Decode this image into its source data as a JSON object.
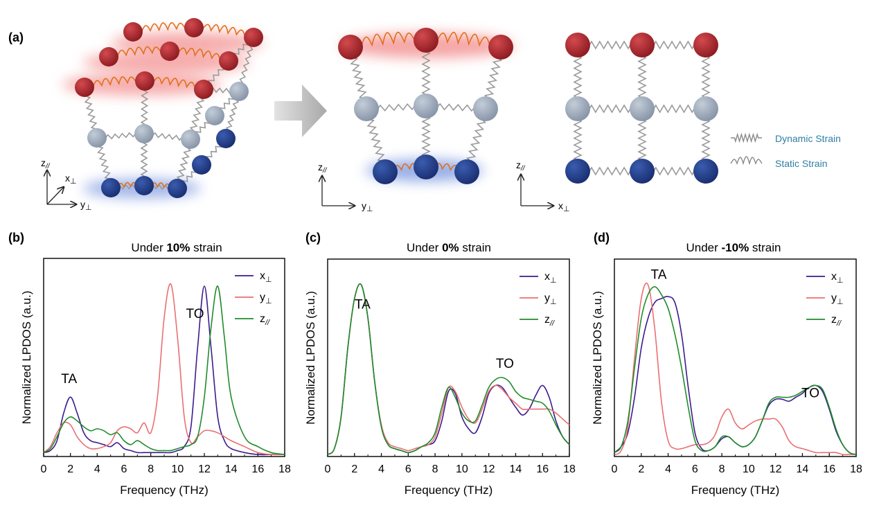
{
  "panel_a": {
    "label": "(a)",
    "axes_left": {
      "z": "z",
      "z_sub": "//",
      "x": "x",
      "x_sub": "⊥",
      "y": "y",
      "y_sub": "⊥"
    },
    "axes_middle": {
      "z": "z",
      "z_sub": "//",
      "y": "y",
      "y_sub": "⊥"
    },
    "axes_right": {
      "z": "z",
      "z_sub": "//",
      "x": "x",
      "x_sub": "⊥"
    },
    "legend": {
      "dynamic": "Dynamic Strain",
      "static": "Static Strain",
      "color": "#2e7fa3"
    },
    "colors": {
      "red": "#b3262b",
      "grey": "#a4b1c2",
      "blue": "#23408e",
      "spring": "#9a9a9a",
      "wave": "#e0701a"
    }
  },
  "chart_data": [
    {
      "panel": "(b)",
      "type": "line",
      "title_pre": "Under ",
      "title_bold": "10%",
      "title_post": " strain",
      "xlabel": "Frequency (THz)",
      "ylabel": "Normalized LPDOS (a.u.)",
      "xlim": [
        0,
        18
      ],
      "xticks": [
        0,
        2,
        4,
        6,
        8,
        10,
        12,
        14,
        16,
        18
      ],
      "ylim": [
        0,
        1
      ],
      "annotations": [
        {
          "text": "TA",
          "x": 1.9,
          "y": 0.37
        },
        {
          "text": "TO",
          "x": 11.3,
          "y": 0.7
        }
      ],
      "legend": [
        {
          "base": "x",
          "sub": "⊥"
        },
        {
          "base": "y",
          "sub": "⊥"
        },
        {
          "base": "z",
          "sub": "//"
        }
      ],
      "series": [
        {
          "name": "x⊥",
          "color": "#3c1a8c",
          "x": [
            0,
            0.5,
            1,
            1.5,
            2,
            2.5,
            3,
            3.5,
            4,
            4.5,
            5,
            5.5,
            6,
            6.5,
            7,
            7.5,
            8,
            8.5,
            9,
            9.5,
            10,
            10.5,
            11,
            11.5,
            12,
            12.5,
            13,
            13.5,
            14,
            15,
            16,
            17,
            18
          ],
          "y": [
            0.02,
            0.03,
            0.08,
            0.22,
            0.3,
            0.22,
            0.12,
            0.08,
            0.07,
            0.06,
            0.05,
            0.07,
            0.04,
            0.03,
            0.02,
            0.02,
            0.02,
            0.02,
            0.02,
            0.02,
            0.03,
            0.05,
            0.15,
            0.55,
            0.86,
            0.55,
            0.2,
            0.08,
            0.04,
            0.02,
            0.01,
            0.01,
            0.01
          ]
        },
        {
          "name": "y⊥",
          "color": "#e96f72",
          "x": [
            0,
            0.5,
            1,
            1.5,
            2,
            2.5,
            3,
            3.5,
            4,
            4.5,
            5,
            5.5,
            6,
            6.5,
            7,
            7.5,
            8,
            8.5,
            9,
            9.5,
            10,
            10.5,
            11,
            11.5,
            12,
            12.5,
            13,
            13.5,
            14,
            15,
            16,
            17,
            18
          ],
          "y": [
            0.02,
            0.05,
            0.12,
            0.17,
            0.16,
            0.1,
            0.06,
            0.04,
            0.04,
            0.05,
            0.07,
            0.13,
            0.15,
            0.14,
            0.12,
            0.17,
            0.12,
            0.3,
            0.7,
            0.87,
            0.6,
            0.2,
            0.07,
            0.1,
            0.13,
            0.13,
            0.12,
            0.1,
            0.08,
            0.05,
            0.02,
            0.01,
            0.01
          ]
        },
        {
          "name": "z//",
          "color": "#1f8c2a",
          "x": [
            0,
            0.5,
            1,
            1.5,
            2,
            2.5,
            3,
            3.5,
            4,
            4.5,
            5,
            5.5,
            6,
            6.5,
            7,
            7.5,
            8,
            8.5,
            9,
            9.5,
            10,
            10.5,
            11,
            11.5,
            12,
            12.5,
            13,
            13.5,
            14,
            15,
            16,
            17,
            18
          ],
          "y": [
            0.02,
            0.04,
            0.1,
            0.17,
            0.2,
            0.18,
            0.15,
            0.13,
            0.14,
            0.13,
            0.11,
            0.12,
            0.08,
            0.06,
            0.08,
            0.06,
            0.04,
            0.03,
            0.03,
            0.03,
            0.04,
            0.05,
            0.06,
            0.1,
            0.3,
            0.65,
            0.86,
            0.6,
            0.3,
            0.1,
            0.05,
            0.02,
            0.01
          ]
        }
      ]
    },
    {
      "panel": "(c)",
      "type": "line",
      "title_pre": "Under ",
      "title_bold": "0%",
      "title_post": " strain",
      "xlabel": "Frequency (THz)",
      "ylabel": "Normalized LPDOS (a.u.)",
      "xlim": [
        0,
        18
      ],
      "xticks": [
        0,
        2,
        4,
        6,
        8,
        10,
        12,
        14,
        16,
        18
      ],
      "ylim": [
        0,
        1
      ],
      "annotations": [
        {
          "text": "TA",
          "x": 2.6,
          "y": 0.75
        },
        {
          "text": "TO",
          "x": 13.2,
          "y": 0.45
        }
      ],
      "legend": [
        {
          "base": "x",
          "sub": "⊥"
        },
        {
          "base": "y",
          "sub": "⊥"
        },
        {
          "base": "z",
          "sub": "//"
        }
      ],
      "series": [
        {
          "name": "x⊥",
          "color": "#3c1a8c",
          "x": [
            0,
            0.5,
            1,
            1.5,
            2,
            2.5,
            3,
            3.5,
            4,
            4.5,
            5,
            5.5,
            6,
            6.5,
            7,
            7.5,
            8,
            8.5,
            9,
            9.5,
            10,
            10.5,
            11,
            11.5,
            12,
            12.5,
            13,
            13.5,
            14,
            14.5,
            15,
            15.5,
            16,
            16.5,
            17,
            17.5,
            18
          ],
          "y": [
            0.01,
            0.04,
            0.2,
            0.55,
            0.8,
            0.87,
            0.7,
            0.38,
            0.15,
            0.06,
            0.04,
            0.03,
            0.02,
            0.03,
            0.05,
            0.06,
            0.08,
            0.18,
            0.33,
            0.32,
            0.2,
            0.14,
            0.12,
            0.2,
            0.32,
            0.36,
            0.35,
            0.3,
            0.25,
            0.21,
            0.24,
            0.31,
            0.36,
            0.3,
            0.18,
            0.1,
            0.06
          ]
        },
        {
          "name": "y⊥",
          "color": "#e96f72",
          "x": [
            0,
            0.5,
            1,
            1.5,
            2,
            2.5,
            3,
            3.5,
            4,
            4.5,
            5,
            5.5,
            6,
            6.5,
            7,
            7.5,
            8,
            8.5,
            9,
            9.5,
            10,
            10.5,
            11,
            11.5,
            12,
            12.5,
            13,
            13.5,
            14,
            14.5,
            15,
            15.5,
            16,
            16.5,
            17,
            17.5,
            18
          ],
          "y": [
            0.01,
            0.04,
            0.2,
            0.55,
            0.8,
            0.87,
            0.7,
            0.38,
            0.16,
            0.07,
            0.05,
            0.04,
            0.03,
            0.04,
            0.05,
            0.06,
            0.1,
            0.22,
            0.35,
            0.33,
            0.25,
            0.19,
            0.17,
            0.24,
            0.33,
            0.36,
            0.34,
            0.3,
            0.27,
            0.24,
            0.24,
            0.24,
            0.24,
            0.24,
            0.22,
            0.19,
            0.16
          ]
        },
        {
          "name": "z//",
          "color": "#1f8c2a",
          "x": [
            0,
            0.5,
            1,
            1.5,
            2,
            2.5,
            3,
            3.5,
            4,
            4.5,
            5,
            5.5,
            6,
            6.5,
            7,
            7.5,
            8,
            8.5,
            9,
            9.5,
            10,
            10.5,
            11,
            11.5,
            12,
            12.5,
            13,
            13.5,
            14,
            14.5,
            15,
            15.5,
            16,
            16.5,
            17,
            17.5,
            18
          ],
          "y": [
            0.01,
            0.04,
            0.2,
            0.55,
            0.8,
            0.87,
            0.7,
            0.38,
            0.15,
            0.06,
            0.04,
            0.03,
            0.02,
            0.03,
            0.05,
            0.07,
            0.12,
            0.25,
            0.35,
            0.3,
            0.22,
            0.18,
            0.18,
            0.26,
            0.35,
            0.39,
            0.4,
            0.38,
            0.33,
            0.3,
            0.29,
            0.28,
            0.27,
            0.23,
            0.16,
            0.1,
            0.06
          ]
        }
      ]
    },
    {
      "panel": "(d)",
      "type": "line",
      "title_pre": "Under ",
      "title_bold": "-10%",
      "title_post": " strain",
      "xlabel": "Frequency (THz)",
      "ylabel": "Normalized LPDOS (a.u.)",
      "xlim": [
        0,
        18
      ],
      "xticks": [
        0,
        2,
        4,
        6,
        8,
        10,
        12,
        14,
        16,
        18
      ],
      "ylim": [
        0,
        1
      ],
      "annotations": [
        {
          "text": "TA",
          "x": 3.3,
          "y": 0.9
        },
        {
          "text": "TO",
          "x": 14.6,
          "y": 0.3
        }
      ],
      "legend": [
        {
          "base": "x",
          "sub": "⊥"
        },
        {
          "base": "y",
          "sub": "⊥"
        },
        {
          "base": "z",
          "sub": "//"
        }
      ],
      "series": [
        {
          "name": "x⊥",
          "color": "#3c1a8c",
          "x": [
            0,
            0.5,
            1,
            1.5,
            2,
            2.5,
            3,
            3.5,
            4,
            4.5,
            5,
            5.5,
            6,
            6.5,
            7,
            7.5,
            8,
            8.5,
            9,
            9.5,
            10,
            10.5,
            11,
            11.5,
            12,
            12.5,
            13,
            13.5,
            14,
            14.5,
            15,
            15.5,
            16,
            16.5,
            17,
            17.5,
            18
          ],
          "y": [
            0.02,
            0.05,
            0.12,
            0.3,
            0.55,
            0.7,
            0.78,
            0.8,
            0.81,
            0.78,
            0.62,
            0.35,
            0.12,
            0.04,
            0.03,
            0.05,
            0.09,
            0.1,
            0.07,
            0.05,
            0.06,
            0.1,
            0.18,
            0.26,
            0.29,
            0.29,
            0.28,
            0.3,
            0.32,
            0.35,
            0.36,
            0.33,
            0.24,
            0.13,
            0.06,
            0.02,
            0.01
          ]
        },
        {
          "name": "y⊥",
          "color": "#e96f72",
          "x": [
            0,
            0.5,
            1,
            1.5,
            2,
            2.5,
            3,
            3.5,
            4,
            4.5,
            5,
            5.5,
            6,
            6.5,
            7,
            7.5,
            8,
            8.5,
            9,
            9.5,
            10,
            10.5,
            11,
            11.5,
            12,
            12.5,
            13,
            13.5,
            14,
            14.5,
            15,
            15.5,
            16,
            16.5,
            17,
            17.5,
            18
          ],
          "y": [
            0.01,
            0.03,
            0.15,
            0.5,
            0.8,
            0.87,
            0.65,
            0.28,
            0.08,
            0.04,
            0.04,
            0.05,
            0.06,
            0.06,
            0.07,
            0.11,
            0.2,
            0.24,
            0.17,
            0.14,
            0.16,
            0.18,
            0.19,
            0.19,
            0.19,
            0.15,
            0.08,
            0.05,
            0.04,
            0.03,
            0.02,
            0.02,
            0.02,
            0.02,
            0.01,
            0.01,
            0.01
          ]
        },
        {
          "name": "z//",
          "color": "#1f8c2a",
          "x": [
            0,
            0.5,
            1,
            1.5,
            2,
            2.5,
            3,
            3.5,
            4,
            4.5,
            5,
            5.5,
            6,
            6.5,
            7,
            7.5,
            8,
            8.5,
            9,
            9.5,
            10,
            10.5,
            11,
            11.5,
            12,
            12.5,
            13,
            13.5,
            14,
            14.5,
            15,
            15.5,
            16,
            16.5,
            17,
            17.5,
            18
          ],
          "y": [
            0.02,
            0.05,
            0.18,
            0.45,
            0.7,
            0.82,
            0.86,
            0.82,
            0.75,
            0.62,
            0.45,
            0.25,
            0.08,
            0.03,
            0.03,
            0.05,
            0.1,
            0.1,
            0.07,
            0.05,
            0.06,
            0.1,
            0.18,
            0.27,
            0.3,
            0.3,
            0.3,
            0.31,
            0.33,
            0.35,
            0.36,
            0.34,
            0.25,
            0.14,
            0.06,
            0.02,
            0.01
          ]
        }
      ]
    }
  ]
}
